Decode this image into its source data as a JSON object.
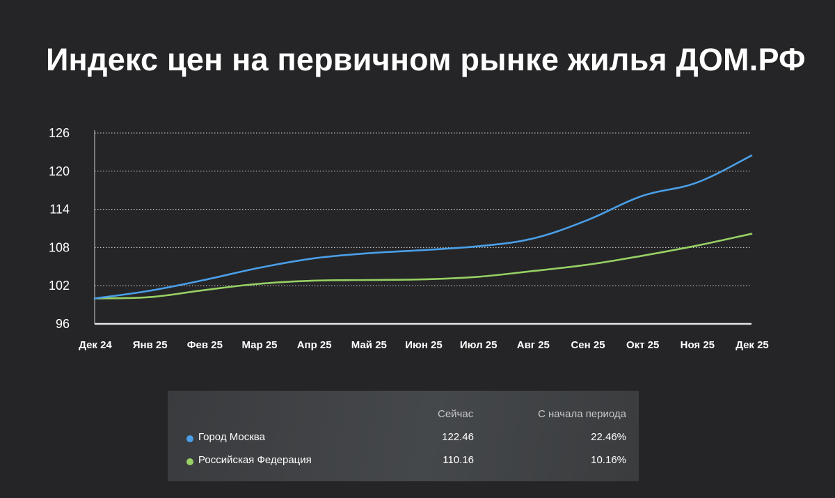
{
  "title": "Индекс цен на первичном рынке жилья ДОМ.РФ",
  "chart_data": {
    "type": "line",
    "title": "Индекс цен на первичном рынке жилья ДОМ.РФ",
    "xlabel": "",
    "ylabel": "",
    "categories": [
      "Дек 24",
      "Янв 25",
      "Фев 25",
      "Мар 25",
      "Апр 25",
      "Май 25",
      "Июн 25",
      "Июл 25",
      "Авг 25",
      "Сен 25",
      "Окт 25",
      "Ноя 25",
      "Дек 25"
    ],
    "yticks": [
      96,
      102,
      108,
      114,
      120,
      126
    ],
    "ylim": [
      96,
      126
    ],
    "grid": "horizontal-dotted",
    "legend": "table-below",
    "series": [
      {
        "name": "Город Москва",
        "color": "#4a9fe8",
        "values": [
          100.0,
          101.2,
          102.9,
          104.8,
          106.3,
          107.1,
          107.6,
          108.2,
          109.4,
          112.3,
          116.1,
          118.2,
          122.46
        ]
      },
      {
        "name": "Российская Федерация",
        "color": "#97d064",
        "values": [
          100.0,
          100.2,
          101.3,
          102.3,
          102.8,
          102.9,
          103.0,
          103.4,
          104.3,
          105.3,
          106.7,
          108.3,
          110.16
        ]
      }
    ]
  },
  "summary": {
    "col_now": "Сейчас",
    "col_change": "С начала периода",
    "rows": [
      {
        "name": "Город Москва",
        "color": "#4a9fe8",
        "now": "122.46",
        "change": "22.46%"
      },
      {
        "name": "Российская Федерация",
        "color": "#97d064",
        "now": "110.16",
        "change": "10.16%"
      }
    ]
  }
}
